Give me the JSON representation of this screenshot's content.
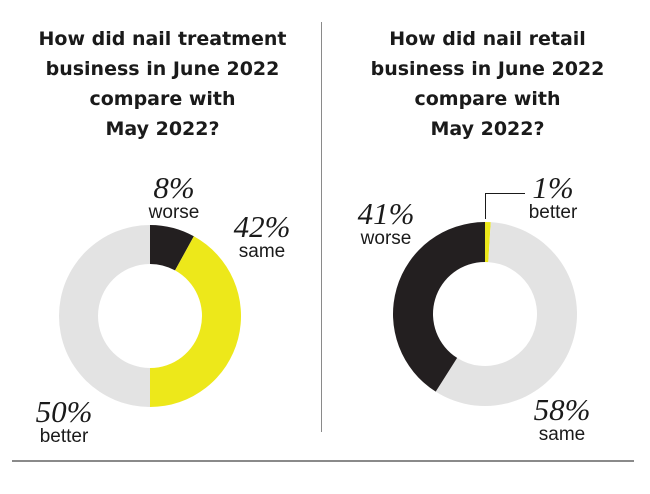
{
  "chart_data": [
    {
      "type": "pie",
      "title": [
        "How did nail treatment",
        "business in June 2022",
        "compare with",
        "May 2022?"
      ],
      "slices": [
        {
          "label": "worse",
          "value": 8,
          "display": "8%",
          "color": "#231f20"
        },
        {
          "label": "same",
          "value": 42,
          "display": "42%",
          "color": "#ede81a"
        },
        {
          "label": "better",
          "value": 50,
          "display": "50%",
          "color": "#e3e3e3"
        }
      ]
    },
    {
      "type": "pie",
      "title": [
        "How did nail retail",
        "business in June 2022",
        "compare with",
        "May 2022?"
      ],
      "slices": [
        {
          "label": "better",
          "value": 1,
          "display": "1%",
          "color": "#ede81a"
        },
        {
          "label": "same",
          "value": 58,
          "display": "58%",
          "color": "#e3e3e3"
        },
        {
          "label": "worse",
          "value": 41,
          "display": "41%",
          "color": "#231f20"
        }
      ]
    }
  ]
}
